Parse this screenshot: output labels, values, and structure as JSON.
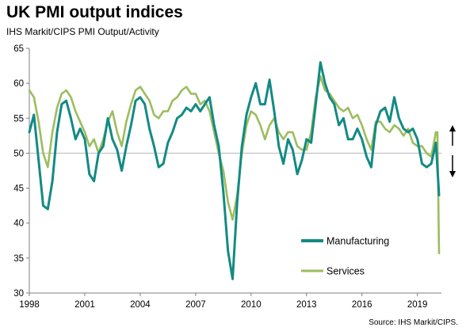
{
  "title": "UK PMI output indices",
  "subtitle": "IHS Markit/CIPS PMI Output/Activity",
  "source": "Source: IHS Markit/CIPS.",
  "chart_data": {
    "type": "line",
    "title": "UK PMI output indices",
    "subtitle": "IHS Markit/CIPS PMI Output/Activity",
    "xlabel": "",
    "ylabel": "",
    "xlim": [
      1998.0,
      2020.3
    ],
    "ylim": [
      30,
      65
    ],
    "x_ticks": [
      "1998",
      "2001",
      "2004",
      "2007",
      "2010",
      "2013",
      "2016",
      "2019"
    ],
    "y_ticks": [
      30,
      35,
      40,
      45,
      50,
      55,
      60,
      65
    ],
    "grid": false,
    "reference_line": 50,
    "legend_position": "lower-right",
    "annotations": [
      "up-arrow",
      "down-arrow"
    ],
    "series": [
      {
        "name": "Manufacturing",
        "color": "#138a84",
        "x": [
          1998.0,
          1998.25,
          1998.5,
          1998.75,
          1999.0,
          1999.25,
          1999.5,
          1999.75,
          2000.0,
          2000.25,
          2000.5,
          2000.75,
          2001.0,
          2001.25,
          2001.5,
          2001.75,
          2002.0,
          2002.25,
          2002.5,
          2002.75,
          2003.0,
          2003.25,
          2003.5,
          2003.75,
          2004.0,
          2004.25,
          2004.5,
          2004.75,
          2005.0,
          2005.25,
          2005.5,
          2005.75,
          2006.0,
          2006.25,
          2006.5,
          2006.75,
          2007.0,
          2007.25,
          2007.5,
          2007.75,
          2008.0,
          2008.25,
          2008.5,
          2008.75,
          2009.0,
          2009.25,
          2009.5,
          2009.75,
          2010.0,
          2010.25,
          2010.5,
          2010.75,
          2011.0,
          2011.25,
          2011.5,
          2011.75,
          2012.0,
          2012.25,
          2012.5,
          2012.75,
          2013.0,
          2013.25,
          2013.5,
          2013.75,
          2014.0,
          2014.25,
          2014.5,
          2014.75,
          2015.0,
          2015.25,
          2015.5,
          2015.75,
          2016.0,
          2016.25,
          2016.5,
          2016.75,
          2017.0,
          2017.25,
          2017.5,
          2017.75,
          2018.0,
          2018.25,
          2018.5,
          2018.75,
          2019.0,
          2019.25,
          2019.5,
          2019.75,
          2020.0,
          2020.17
        ],
        "values": [
          53.0,
          55.5,
          49.0,
          42.5,
          42.0,
          46.0,
          53.0,
          57.0,
          57.5,
          55.0,
          52.0,
          53.5,
          52.0,
          47.0,
          46.0,
          50.0,
          51.0,
          55.0,
          52.0,
          50.5,
          47.5,
          51.0,
          54.0,
          57.5,
          58.0,
          57.0,
          53.5,
          51.0,
          48.0,
          48.5,
          51.5,
          53.0,
          55.0,
          55.5,
          56.5,
          56.0,
          57.0,
          56.0,
          57.0,
          58.0,
          54.0,
          51.0,
          44.5,
          36.0,
          32.0,
          43.0,
          51.0,
          55.5,
          58.0,
          60.0,
          57.0,
          57.0,
          60.5,
          56.0,
          51.0,
          48.5,
          52.0,
          50.5,
          47.0,
          49.0,
          52.0,
          51.5,
          57.0,
          63.0,
          60.0,
          58.0,
          57.0,
          54.0,
          55.0,
          52.0,
          52.0,
          53.5,
          52.0,
          49.5,
          48.0,
          54.0,
          56.0,
          56.5,
          54.5,
          58.0,
          55.0,
          53.5,
          53.0,
          53.5,
          52.0,
          48.5,
          48.0,
          48.5,
          51.5,
          44.0
        ]
      },
      {
        "name": "Services",
        "color": "#9cbd5e",
        "x": [
          1998.0,
          1998.25,
          1998.5,
          1998.75,
          1999.0,
          1999.25,
          1999.5,
          1999.75,
          2000.0,
          2000.25,
          2000.5,
          2000.75,
          2001.0,
          2001.25,
          2001.5,
          2001.75,
          2002.0,
          2002.25,
          2002.5,
          2002.75,
          2003.0,
          2003.25,
          2003.5,
          2003.75,
          2004.0,
          2004.25,
          2004.5,
          2004.75,
          2005.0,
          2005.25,
          2005.5,
          2005.75,
          2006.0,
          2006.25,
          2006.5,
          2006.75,
          2007.0,
          2007.25,
          2007.5,
          2007.75,
          2008.0,
          2008.25,
          2008.5,
          2008.75,
          2009.0,
          2009.25,
          2009.5,
          2009.75,
          2010.0,
          2010.25,
          2010.5,
          2010.75,
          2011.0,
          2011.25,
          2011.5,
          2011.75,
          2012.0,
          2012.25,
          2012.5,
          2012.75,
          2013.0,
          2013.25,
          2013.5,
          2013.75,
          2014.0,
          2014.25,
          2014.5,
          2014.75,
          2015.0,
          2015.25,
          2015.5,
          2015.75,
          2016.0,
          2016.25,
          2016.5,
          2016.75,
          2017.0,
          2017.25,
          2017.5,
          2017.75,
          2018.0,
          2018.25,
          2018.5,
          2018.75,
          2019.0,
          2019.25,
          2019.5,
          2019.75,
          2020.0,
          2020.08,
          2020.17
        ],
        "values": [
          59.0,
          58.0,
          54.5,
          50.0,
          48.0,
          53.0,
          56.5,
          58.5,
          59.0,
          58.0,
          56.0,
          54.5,
          53.0,
          51.0,
          52.0,
          50.0,
          52.0,
          54.5,
          56.0,
          53.0,
          51.0,
          54.5,
          57.0,
          59.0,
          59.5,
          58.5,
          57.5,
          55.5,
          55.0,
          56.0,
          56.0,
          57.5,
          58.0,
          59.0,
          59.5,
          58.5,
          58.5,
          57.0,
          57.5,
          56.0,
          53.0,
          50.0,
          47.5,
          43.0,
          40.5,
          44.0,
          50.0,
          54.0,
          56.0,
          55.5,
          54.0,
          52.0,
          54.0,
          55.0,
          53.0,
          52.0,
          53.0,
          53.0,
          51.0,
          50.5,
          50.5,
          53.0,
          58.0,
          61.0,
          59.0,
          58.5,
          57.5,
          56.5,
          56.0,
          56.5,
          55.0,
          55.5,
          54.0,
          52.0,
          50.5,
          54.5,
          54.5,
          53.5,
          53.0,
          54.0,
          53.5,
          52.5,
          53.5,
          51.5,
          51.0,
          51.0,
          50.0,
          49.5,
          53.0,
          53.0,
          35.7
        ]
      }
    ]
  }
}
